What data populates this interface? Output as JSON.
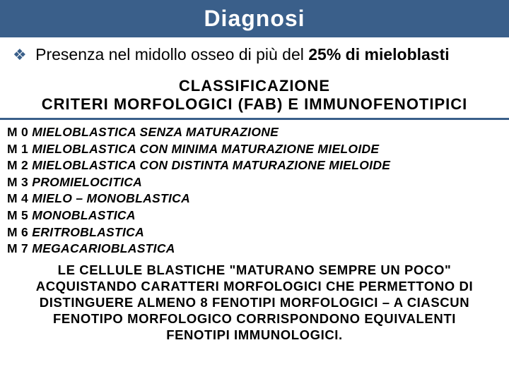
{
  "header": {
    "title": "Diagnosi"
  },
  "intro": {
    "bullet": "❖",
    "text_prefix": "Presenza nel midollo osseo di più del ",
    "bold_part": "25% di mieloblasti"
  },
  "section": {
    "title": "CLASSIFICAZIONE",
    "subtitle": "CRITERI  MORFOLOGICI  (FAB)  E  IMMUNOFENOTIPICI"
  },
  "classification": [
    {
      "code": "M 0",
      "desc": "MIELOBLASTICA  SENZA  MATURAZIONE"
    },
    {
      "code": "M 1",
      "desc": "MIELOBLASTICA  CON  MINIMA  MATURAZIONE MIELOIDE"
    },
    {
      "code": "M 2",
      "desc": "MIELOBLASTICA  CON  DISTINTA  MATURAZIONE MIELOIDE"
    },
    {
      "code": "M 3",
      "desc": "PROMIELOCITICA"
    },
    {
      "code": "M 4",
      "desc": "MIELO – MONOBLASTICA"
    },
    {
      "code": "M 5",
      "desc": "MONOBLASTICA"
    },
    {
      "code": "M 6",
      "desc": "ERITROBLASTICA"
    },
    {
      "code": "M 7",
      "desc": "MEGACARIOBLASTICA"
    }
  ],
  "footer": {
    "text": "LE  CELLULE  BLASTICHE  \"MATURANO  SEMPRE  UN  POCO\" ACQUISTANDO  CARATTERI  MORFOLOGICI  CHE  PERMETTONO  DI DISTINGUERE  ALMENO  8  FENOTIPI  MORFOLOGICI – A  CIASCUN FENOTIPO  MORFOLOGICO  CORRISPONDONO  EQUIVALENTI  FENOTIPI IMMUNOLOGICI."
  },
  "colors": {
    "header_bg": "#3a5f8a",
    "header_fg": "#ffffff",
    "bullet": "#3a5f8a",
    "rule": "#3a5f8a",
    "text": "#000000",
    "background": "#ffffff"
  }
}
